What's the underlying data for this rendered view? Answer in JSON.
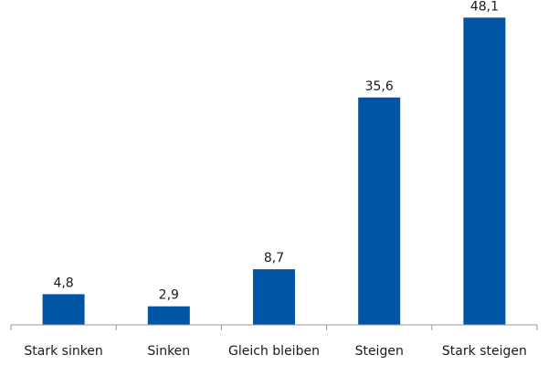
{
  "chart_data": {
    "type": "bar",
    "categories": [
      "Stark sinken",
      "Sinken",
      "Gleich bleiben",
      "Steigen",
      "Stark steigen"
    ],
    "values": [
      4.8,
      2.9,
      8.7,
      35.6,
      48.1
    ],
    "value_labels": [
      "4,8",
      "2,9",
      "8,7",
      "35,6",
      "48,1"
    ],
    "ylim": [
      0,
      50
    ],
    "grid": false,
    "legend": "none",
    "bar_color": "#0055a4",
    "axis_color": "#9a9a9a"
  }
}
